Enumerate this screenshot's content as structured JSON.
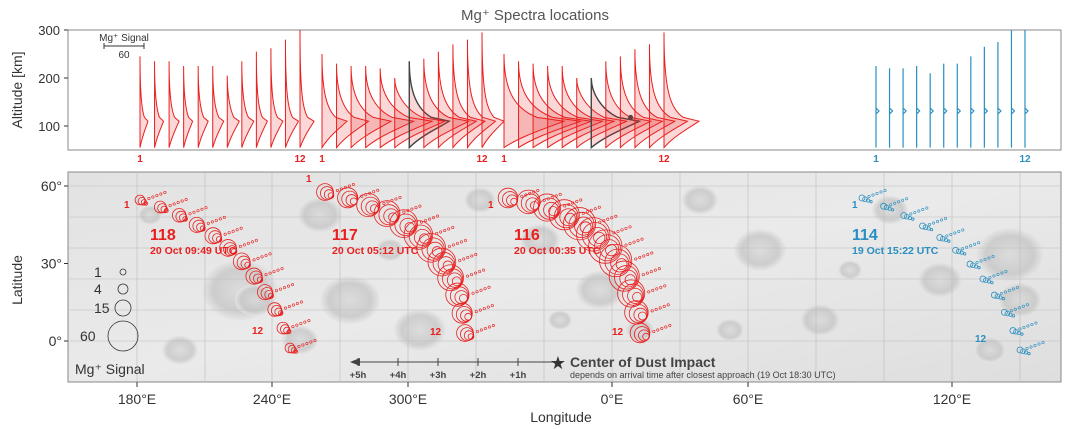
{
  "colors": {
    "red": "#e8201f",
    "blue": "#2a8fc0",
    "dark": "#444444",
    "grid": "#bbbbbb"
  },
  "chart_data": [
    {
      "type": "line",
      "title": "Mg⁺ Spectra locations",
      "ylabel": "Altitude [km]",
      "ylim": [
        50,
        300
      ],
      "yticks": [
        "100",
        "200",
        "300"
      ],
      "scalebar": {
        "label": "Mg⁺ Signal",
        "value": "60"
      },
      "series": [
        {
          "orbit": "118",
          "color": "red",
          "first_label": "1",
          "last_label": "12",
          "count": 12,
          "tops": [
            245,
            235,
            235,
            225,
            225,
            225,
            205,
            235,
            255,
            262,
            280,
            300
          ],
          "widths": [
            8,
            9,
            10,
            9,
            10,
            11,
            12,
            12,
            11,
            12,
            13,
            14
          ]
        },
        {
          "orbit": "117",
          "color": "red",
          "first_label": "1",
          "last_label": "12",
          "count": 12,
          "tops": [
            250,
            230,
            225,
            225,
            220,
            200,
            235,
            240,
            255,
            270,
            280,
            295
          ],
          "widths": [
            25,
            32,
            40,
            48,
            52,
            50,
            40,
            45,
            38,
            32,
            28,
            22
          ],
          "dark_index": 6
        },
        {
          "orbit": "116",
          "color": "red",
          "first_label": "1",
          "last_label": "12",
          "count": 12,
          "tops": [
            250,
            235,
            230,
            225,
            225,
            200,
            200,
            235,
            245,
            260,
            270,
            295
          ],
          "widths": [
            60,
            62,
            58,
            55,
            52,
            50,
            48,
            45,
            42,
            40,
            38,
            35
          ],
          "dark_index": 6,
          "dot_index": 7
        },
        {
          "orbit": "114",
          "color": "blue",
          "first_label": "1",
          "last_label": "12",
          "count": 12,
          "tops": [
            225,
            220,
            220,
            225,
            210,
            230,
            230,
            245,
            265,
            275,
            300,
            300
          ],
          "widths": [
            3,
            3,
            3,
            3,
            3,
            3,
            3,
            3,
            3,
            3,
            3,
            3
          ]
        }
      ]
    },
    {
      "type": "scatter",
      "xlabel": "Longitude",
      "ylabel": "Latitude",
      "xticks": [
        "180°E",
        "240°E",
        "300°E",
        "0°E",
        "60°E",
        "120°E"
      ],
      "yticks": [
        "0°",
        "30°",
        "60°"
      ],
      "legend": {
        "title": "Mg⁺ Signal",
        "sizes": [
          "1",
          "4",
          "15",
          "60"
        ]
      },
      "orbits": [
        {
          "orbit": "118",
          "time": "20 Oct 09:49 UTC",
          "color": "red",
          "first_label": "1",
          "last_label": "12"
        },
        {
          "orbit": "117",
          "time": "20 Oct 05:12 UTC",
          "color": "red",
          "first_label": "1",
          "last_label": "12"
        },
        {
          "orbit": "116",
          "time": "20 Oct 00:35 UTC",
          "color": "red",
          "first_label": "1",
          "last_label": "12"
        },
        {
          "orbit": "114",
          "time": "19 Oct 15:22 UTC",
          "color": "blue",
          "first_label": "1",
          "last_label": "12"
        }
      ],
      "impact": {
        "label": "Center of Dust Impact",
        "sublabel": "depends on arrival time after closest approach (19 Oct 18:30 UTC)",
        "hours": [
          "+1h",
          "+2h",
          "+3h",
          "+4h",
          "+5h"
        ]
      }
    }
  ]
}
